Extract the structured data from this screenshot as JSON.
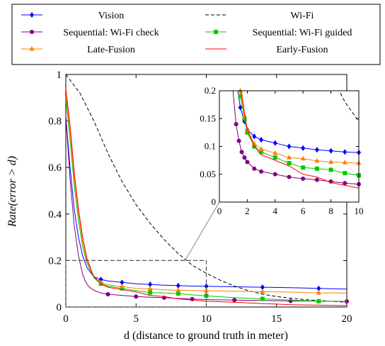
{
  "chart_data": {
    "type": "line",
    "xlabel": "d (distance to ground truth in meter)",
    "ylabel": "Rate(error > d)",
    "xlim": [
      0,
      20
    ],
    "ylim": [
      0,
      1
    ],
    "xticks": [
      "0",
      "5",
      "10",
      "15",
      "20"
    ],
    "yticks": [
      "0",
      "0.2",
      "0.4",
      "0.6",
      "0.8",
      "1"
    ],
    "grid": false,
    "legend_position": "top, above plot, 2 columns",
    "series": [
      {
        "name": "Vision",
        "color": "#0000ff",
        "marker": "diamond",
        "x": [
          0,
          0.3,
          0.6,
          0.9,
          1.2,
          1.5,
          1.8,
          2,
          2.5,
          3,
          4,
          5,
          6,
          7,
          8,
          9,
          10,
          12,
          14,
          16,
          18,
          20
        ],
        "y": [
          0.82,
          0.6,
          0.42,
          0.3,
          0.22,
          0.17,
          0.145,
          0.13,
          0.118,
          0.112,
          0.106,
          0.1,
          0.097,
          0.094,
          0.092,
          0.09,
          0.089,
          0.087,
          0.085,
          0.083,
          0.08,
          0.077
        ]
      },
      {
        "name": "Wi-Fi",
        "color": "#000000",
        "marker": "none",
        "dash": "dashed",
        "x": [
          0,
          1,
          2,
          3,
          4,
          5,
          6,
          7,
          8,
          9,
          10,
          11,
          12,
          13,
          14,
          15,
          16,
          17,
          18,
          19,
          20
        ],
        "y": [
          1.0,
          0.92,
          0.8,
          0.66,
          0.54,
          0.44,
          0.36,
          0.29,
          0.23,
          0.18,
          0.145,
          0.115,
          0.09,
          0.07,
          0.055,
          0.045,
          0.038,
          0.032,
          0.028,
          0.024,
          0.02
        ]
      },
      {
        "name": "Sequential: Wi-Fi check",
        "color": "#800080",
        "marker": "circle",
        "x": [
          0,
          0.3,
          0.6,
          0.9,
          1.2,
          1.4,
          1.6,
          1.8,
          2,
          2.5,
          3,
          4,
          5,
          6,
          7,
          8,
          9,
          10,
          12,
          14,
          16,
          18,
          20
        ],
        "y": [
          0.82,
          0.55,
          0.35,
          0.22,
          0.14,
          0.11,
          0.09,
          0.08,
          0.072,
          0.06,
          0.055,
          0.05,
          0.045,
          0.042,
          0.04,
          0.037,
          0.034,
          0.032,
          0.03,
          0.028,
          0.026,
          0.025,
          0.024
        ]
      },
      {
        "name": "Sequential: Wi-Fi guided",
        "color": "#00cc00",
        "marker": "square",
        "x": [
          0,
          0.3,
          0.6,
          0.9,
          1.2,
          1.5,
          1.8,
          2,
          2.5,
          3,
          4,
          5,
          6,
          7,
          8,
          9,
          10,
          12,
          14,
          16,
          18,
          20
        ],
        "y": [
          0.9,
          0.72,
          0.52,
          0.37,
          0.26,
          0.19,
          0.15,
          0.125,
          0.1,
          0.09,
          0.08,
          0.07,
          0.062,
          0.06,
          0.058,
          0.052,
          0.048,
          0.04,
          0.035,
          0.03,
          0.025,
          0.023
        ]
      },
      {
        "name": "Late-Fusion",
        "color": "#ff8000",
        "marker": "triangle",
        "x": [
          0,
          0.3,
          0.6,
          0.9,
          1.2,
          1.5,
          1.8,
          2,
          2.5,
          3,
          4,
          5,
          6,
          7,
          8,
          9,
          10,
          12,
          14,
          16,
          18,
          20
        ],
        "y": [
          0.92,
          0.75,
          0.55,
          0.4,
          0.28,
          0.2,
          0.155,
          0.13,
          0.105,
          0.095,
          0.088,
          0.08,
          0.078,
          0.074,
          0.072,
          0.071,
          0.07,
          0.068,
          0.066,
          0.064,
          0.061,
          0.06
        ]
      },
      {
        "name": "Early-Fusion",
        "color": "#ff0000",
        "marker": "none",
        "x": [
          0,
          0.3,
          0.6,
          0.9,
          1.2,
          1.5,
          1.8,
          2,
          2.5,
          3,
          4,
          5,
          6,
          7,
          8,
          9,
          10,
          12,
          14,
          16,
          18,
          20
        ],
        "y": [
          0.94,
          0.78,
          0.58,
          0.42,
          0.3,
          0.21,
          0.16,
          0.13,
          0.1,
          0.085,
          0.075,
          0.065,
          0.05,
          0.045,
          0.035,
          0.03,
          0.025,
          0.02,
          0.015,
          0.01,
          0.008,
          0.006
        ]
      }
    ],
    "inset": {
      "xlim": [
        0,
        10
      ],
      "ylim": [
        0,
        0.2
      ],
      "xticks": [
        "0",
        "2",
        "4",
        "6",
        "8",
        "10"
      ],
      "yticks": [
        "0",
        "0.05",
        "0.1",
        "0.15",
        "0.2"
      ],
      "zoom_region": {
        "x": [
          0,
          10
        ],
        "y": [
          0,
          0.2
        ]
      }
    }
  }
}
